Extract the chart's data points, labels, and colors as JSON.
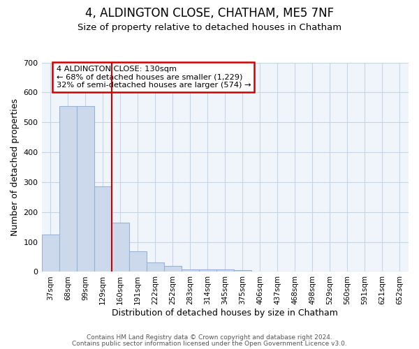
{
  "title": "4, ALDINGTON CLOSE, CHATHAM, ME5 7NF",
  "subtitle": "Size of property relative to detached houses in Chatham",
  "xlabel": "Distribution of detached houses by size in Chatham",
  "ylabel": "Number of detached properties",
  "bar_labels": [
    "37sqm",
    "68sqm",
    "99sqm",
    "129sqm",
    "160sqm",
    "191sqm",
    "222sqm",
    "252sqm",
    "283sqm",
    "314sqm",
    "345sqm",
    "375sqm",
    "406sqm",
    "437sqm",
    "468sqm",
    "498sqm",
    "529sqm",
    "560sqm",
    "591sqm",
    "621sqm",
    "652sqm"
  ],
  "bar_values": [
    125,
    555,
    555,
    285,
    165,
    68,
    32,
    20,
    8,
    8,
    8,
    5,
    0,
    0,
    0,
    0,
    0,
    0,
    0,
    0,
    0
  ],
  "bar_color": "#ccd9ec",
  "bar_edge_color": "#99b3d4",
  "vline_color": "#cc0000",
  "vline_x": 3,
  "annotation_text": "4 ALDINGTON CLOSE: 130sqm\n← 68% of detached houses are smaller (1,229)\n32% of semi-detached houses are larger (574) →",
  "annotation_box_color": "#cc0000",
  "ylim": [
    0,
    700
  ],
  "yticks": [
    0,
    100,
    200,
    300,
    400,
    500,
    600,
    700
  ],
  "footer1": "Contains HM Land Registry data © Crown copyright and database right 2024.",
  "footer2": "Contains public sector information licensed under the Open Government Licence v3.0.",
  "bg_color": "#f0f5fb",
  "grid_color": "#c5d5e8",
  "fig_bg": "#ffffff",
  "title_fontsize": 12,
  "subtitle_fontsize": 9.5
}
